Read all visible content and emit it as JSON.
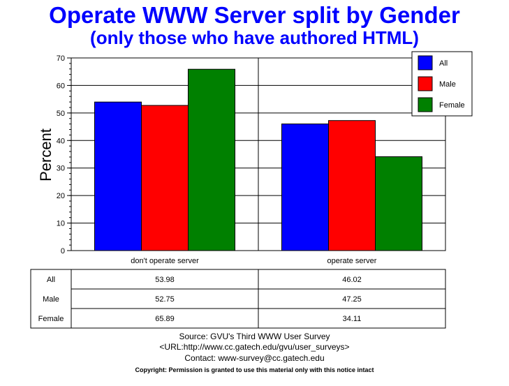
{
  "title": "Operate WWW Server split by Gender",
  "subtitle": "(only those who have authored HTML)",
  "chart_data": {
    "type": "bar",
    "ylabel": "Percent",
    "ylim": [
      0,
      70
    ],
    "yticks": [
      "0",
      "10",
      "20",
      "30",
      "40",
      "50",
      "60",
      "70"
    ],
    "categories": [
      "don't operate server",
      "operate server"
    ],
    "series": [
      {
        "name": "All",
        "color": "#0000ff",
        "values": [
          53.98,
          46.02
        ],
        "labels": [
          "53.98",
          "46.02"
        ]
      },
      {
        "name": "Male",
        "color": "#ff0000",
        "values": [
          52.75,
          47.25
        ],
        "labels": [
          "52.75",
          "47.25"
        ]
      },
      {
        "name": "Female",
        "color": "#008000",
        "values": [
          65.89,
          34.11
        ],
        "labels": [
          "65.89",
          "34.11"
        ]
      }
    ],
    "legend": "top-right",
    "grid": true
  },
  "source": {
    "line1": "Source: GVU's Third WWW User Survey",
    "line2": "<URL:http://www.cc.gatech.edu/gvu/user_surveys>",
    "line3": "Contact: www-survey@cc.gatech.edu",
    "copyright": "Copyright: Permission is granted to use this material only with this notice intact"
  }
}
